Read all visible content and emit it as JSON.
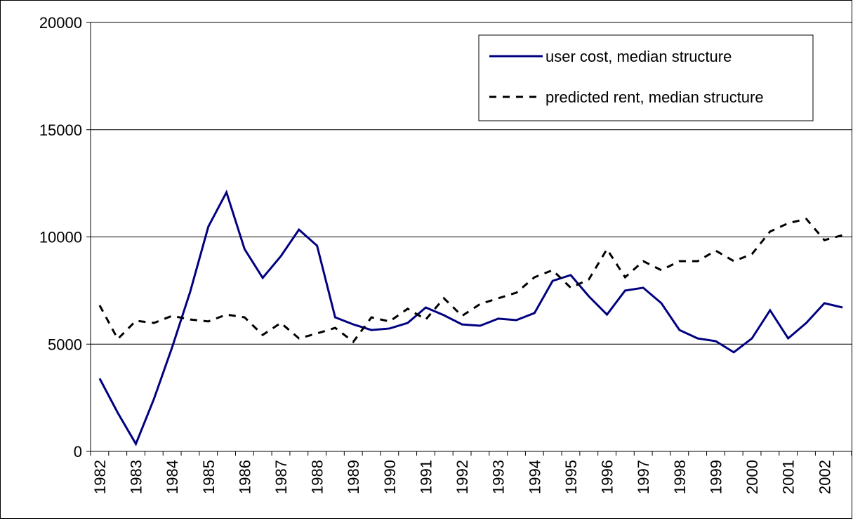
{
  "chart_data": {
    "type": "line",
    "categories": [
      "1982",
      null,
      "1983",
      null,
      "1984",
      null,
      "1985",
      null,
      "1986",
      null,
      "1987",
      null,
      "1988",
      null,
      "1989",
      null,
      "1990",
      null,
      "1991",
      null,
      "1992",
      null,
      "1993",
      null,
      "1994",
      null,
      "1995",
      null,
      "1996",
      null,
      "1997",
      null,
      "1998",
      null,
      "1999",
      null,
      "2000",
      null,
      "2001",
      null,
      "2002",
      null
    ],
    "series": [
      {
        "name": "user cost, median structure",
        "color": "#000080",
        "dashed": false,
        "values": [
          3400,
          1800,
          350,
          2450,
          4850,
          7450,
          10480,
          12080,
          9430,
          8090,
          9100,
          10340,
          9590,
          6250,
          5920,
          5660,
          5730,
          5990,
          6710,
          6350,
          5920,
          5860,
          6190,
          6120,
          6450,
          7950,
          8220,
          7230,
          6380,
          7500,
          7630,
          6910,
          5660,
          5270,
          5140,
          4620,
          5270,
          6580,
          5270,
          5990,
          6910,
          6710
        ]
      },
      {
        "name": "predicted rent, median structure",
        "color": "#000000",
        "dashed": true,
        "values": [
          6810,
          5240,
          6090,
          5990,
          6320,
          6150,
          6060,
          6380,
          6250,
          5430,
          5990,
          5270,
          5500,
          5760,
          5110,
          6250,
          6060,
          6650,
          6150,
          7140,
          6320,
          6870,
          7140,
          7400,
          8120,
          8450,
          7630,
          8020,
          9430,
          8120,
          8870,
          8450,
          8870,
          8870,
          9360,
          8870,
          9200,
          10250,
          10640,
          10840,
          9850,
          10080
        ]
      }
    ],
    "ylim": [
      0,
      20000
    ],
    "yticks": [
      0,
      5000,
      10000,
      15000,
      20000
    ],
    "grid": true,
    "legend": "upper right"
  }
}
